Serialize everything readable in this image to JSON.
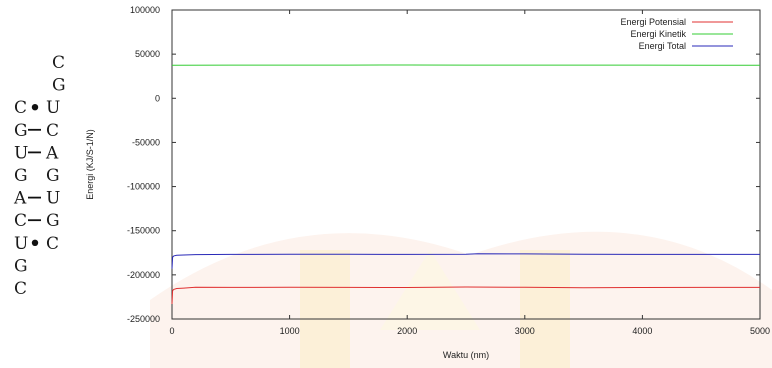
{
  "rna_structure": {
    "rows": [
      {
        "left": "C",
        "bond": "",
        "right": ""
      },
      {
        "left": "G",
        "bond": "",
        "right": ""
      },
      {
        "left": "C",
        "bond": "dot",
        "right": "U"
      },
      {
        "left": "G",
        "bond": "dash",
        "right": "C"
      },
      {
        "left": "U",
        "bond": "dash",
        "right": "A"
      },
      {
        "left": "G",
        "bond": "",
        "right": "G"
      },
      {
        "left": "A",
        "bond": "dash",
        "right": "U"
      },
      {
        "left": "C",
        "bond": "dash",
        "right": "G"
      },
      {
        "left": "U",
        "bond": "dot",
        "right": "C"
      },
      {
        "left": "G",
        "bond": "",
        "right": ""
      },
      {
        "left": "C",
        "bond": "",
        "right": ""
      }
    ]
  },
  "chart_data": {
    "type": "line",
    "title": "",
    "xlabel": "Waktu (nm)",
    "ylabel": "Energi (KJ/S-1/N)",
    "xlim": [
      0,
      5000
    ],
    "ylim": [
      -250000,
      100000
    ],
    "xticks": [
      0,
      1000,
      2000,
      3000,
      4000,
      5000
    ],
    "yticks": [
      100000,
      50000,
      0,
      -50000,
      -100000,
      -150000,
      -200000,
      -250000
    ],
    "grid": false,
    "legend_position": "top-right",
    "series": [
      {
        "name": "Energi Potensial",
        "color": "#e03030",
        "x": [
          0,
          5,
          15,
          40,
          100,
          200,
          500,
          1000,
          1500,
          2000,
          2500,
          3000,
          3500,
          4000,
          4500,
          5000
        ],
        "y": [
          -233000,
          -218000,
          -216500,
          -215500,
          -215000,
          -214000,
          -214200,
          -214000,
          -214200,
          -214300,
          -213800,
          -214100,
          -214500,
          -214300,
          -214200,
          -214200
        ]
      },
      {
        "name": "Energi Kinetik",
        "color": "#33cc33",
        "x": [
          0,
          500,
          1000,
          1500,
          2000,
          2500,
          3000,
          3500,
          4000,
          4500,
          5000
        ],
        "y": [
          37500,
          37600,
          37600,
          37600,
          37700,
          37600,
          37600,
          37600,
          37600,
          37500,
          37500
        ]
      },
      {
        "name": "Energi Total",
        "color": "#2a2ab8",
        "x": [
          0,
          5,
          15,
          40,
          100,
          200,
          500,
          1000,
          1500,
          2000,
          2500,
          2600,
          3000,
          3500,
          4000,
          4500,
          5000
        ],
        "y": [
          -193000,
          -180000,
          -178500,
          -177800,
          -177500,
          -177000,
          -176800,
          -176700,
          -176700,
          -176800,
          -176600,
          -176200,
          -176300,
          -176700,
          -176800,
          -176800,
          -176800
        ]
      }
    ]
  }
}
